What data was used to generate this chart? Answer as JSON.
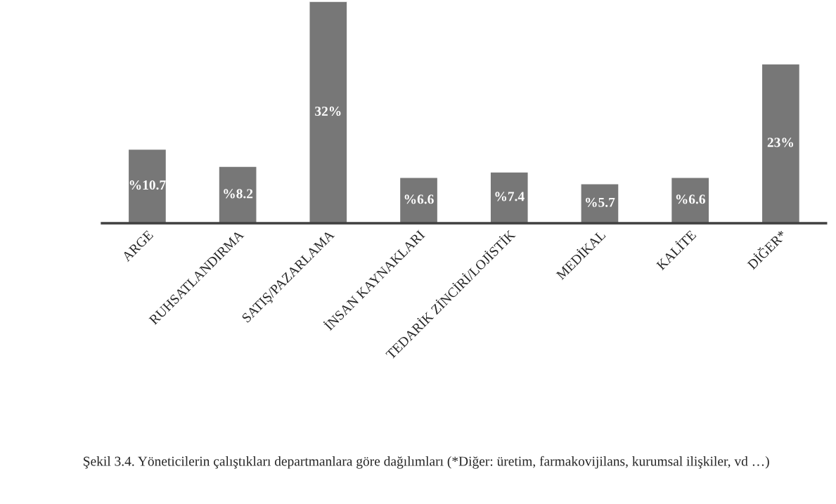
{
  "chart_data": {
    "type": "bar",
    "categories": [
      "ARGE",
      "RUHSATLANDIRMA",
      "SATIŞ/PAZARLAMA",
      "İNSAN KAYNAKLARI",
      "TEDARİK ZİNCİRİ/LOJİSTİK",
      "MEDİKAL",
      "KALİTE",
      "DİĞER*"
    ],
    "values": [
      10.7,
      8.2,
      32,
      6.6,
      7.4,
      5.7,
      6.6,
      23
    ],
    "value_labels": [
      "%10.7",
      "%8.2",
      "32%",
      "%6.6",
      "%7.4",
      "%5.7",
      "%6.6",
      "23%"
    ],
    "color": "#777777",
    "grid": false,
    "annotations": [
      "Şekil 3.4. Yöneticilerin çalıştıkları departmanlara göre dağılımları (*Diğer: üretim, farmakovijilans, kurumsal ilişkiler, vd …)"
    ]
  }
}
